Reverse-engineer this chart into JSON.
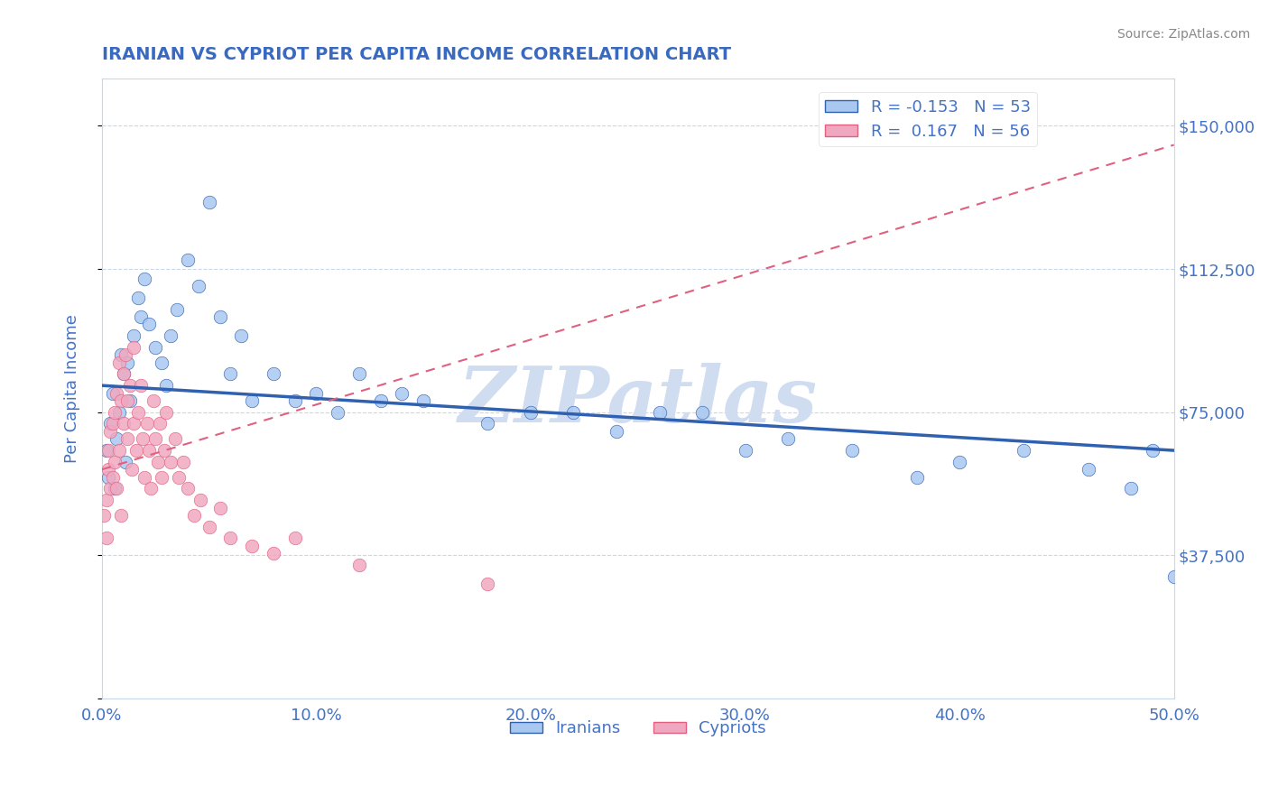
{
  "title": "IRANIAN VS CYPRIOT PER CAPITA INCOME CORRELATION CHART",
  "source_text": "Source: ZipAtlas.com",
  "ylabel": "Per Capita Income",
  "xlabel": "",
  "xlim": [
    0.0,
    0.5
  ],
  "ylim": [
    0,
    162500
  ],
  "yticks": [
    0,
    37500,
    75000,
    112500,
    150000
  ],
  "ytick_labels": [
    "",
    "$37,500",
    "$75,000",
    "$112,500",
    "$150,000"
  ],
  "xticks": [
    0.0,
    0.1,
    0.2,
    0.3,
    0.4,
    0.5
  ],
  "xtick_labels": [
    "0.0%",
    "10.0%",
    "20.0%",
    "30.0%",
    "40.0%",
    "50.0%"
  ],
  "iranian_R": -0.153,
  "iranian_N": 53,
  "cypriot_R": 0.167,
  "cypriot_N": 56,
  "iranian_color": "#a8c8f0",
  "cypriot_color": "#f0a8c0",
  "trendline_iranian_color": "#3060b0",
  "trendline_cypriot_color": "#e06080",
  "axis_color": "#4472c4",
  "title_color": "#3a6abf",
  "watermark": "ZIPatlas",
  "watermark_color": "#d0ddf0",
  "grid_color": "#c8d8e8",
  "iranians_x": [
    0.002,
    0.003,
    0.004,
    0.005,
    0.006,
    0.007,
    0.008,
    0.009,
    0.01,
    0.011,
    0.012,
    0.013,
    0.015,
    0.017,
    0.018,
    0.02,
    0.022,
    0.025,
    0.028,
    0.03,
    0.032,
    0.035,
    0.04,
    0.045,
    0.05,
    0.055,
    0.06,
    0.065,
    0.07,
    0.08,
    0.09,
    0.1,
    0.11,
    0.12,
    0.13,
    0.14,
    0.15,
    0.18,
    0.2,
    0.22,
    0.24,
    0.26,
    0.28,
    0.3,
    0.32,
    0.35,
    0.38,
    0.4,
    0.43,
    0.46,
    0.48,
    0.49,
    0.5
  ],
  "iranians_y": [
    65000,
    58000,
    72000,
    80000,
    55000,
    68000,
    75000,
    90000,
    85000,
    62000,
    88000,
    78000,
    95000,
    105000,
    100000,
    110000,
    98000,
    92000,
    88000,
    82000,
    95000,
    102000,
    115000,
    108000,
    130000,
    100000,
    85000,
    95000,
    78000,
    85000,
    78000,
    80000,
    75000,
    85000,
    78000,
    80000,
    78000,
    72000,
    75000,
    75000,
    70000,
    75000,
    75000,
    65000,
    68000,
    65000,
    58000,
    62000,
    65000,
    60000,
    55000,
    65000,
    32000
  ],
  "cypriots_x": [
    0.001,
    0.002,
    0.002,
    0.003,
    0.003,
    0.004,
    0.004,
    0.005,
    0.005,
    0.006,
    0.006,
    0.007,
    0.007,
    0.008,
    0.008,
    0.009,
    0.009,
    0.01,
    0.01,
    0.011,
    0.012,
    0.012,
    0.013,
    0.014,
    0.015,
    0.015,
    0.016,
    0.017,
    0.018,
    0.019,
    0.02,
    0.021,
    0.022,
    0.023,
    0.024,
    0.025,
    0.026,
    0.027,
    0.028,
    0.029,
    0.03,
    0.032,
    0.034,
    0.036,
    0.038,
    0.04,
    0.043,
    0.046,
    0.05,
    0.055,
    0.06,
    0.07,
    0.08,
    0.09,
    0.12,
    0.18
  ],
  "cypriots_y": [
    48000,
    52000,
    42000,
    60000,
    65000,
    55000,
    70000,
    72000,
    58000,
    75000,
    62000,
    80000,
    55000,
    88000,
    65000,
    78000,
    48000,
    85000,
    72000,
    90000,
    68000,
    78000,
    82000,
    60000,
    92000,
    72000,
    65000,
    75000,
    82000,
    68000,
    58000,
    72000,
    65000,
    55000,
    78000,
    68000,
    62000,
    72000,
    58000,
    65000,
    75000,
    62000,
    68000,
    58000,
    62000,
    55000,
    48000,
    52000,
    45000,
    50000,
    42000,
    40000,
    38000,
    42000,
    35000,
    30000
  ],
  "trendline_iran_x0": 0.0,
  "trendline_iran_y0": 82000,
  "trendline_iran_x1": 0.5,
  "trendline_iran_y1": 65000,
  "trendline_cyp_x0": 0.0,
  "trendline_cyp_y0": 65000,
  "trendline_cyp_x1": 0.1,
  "trendline_cyp_y1": 78000
}
